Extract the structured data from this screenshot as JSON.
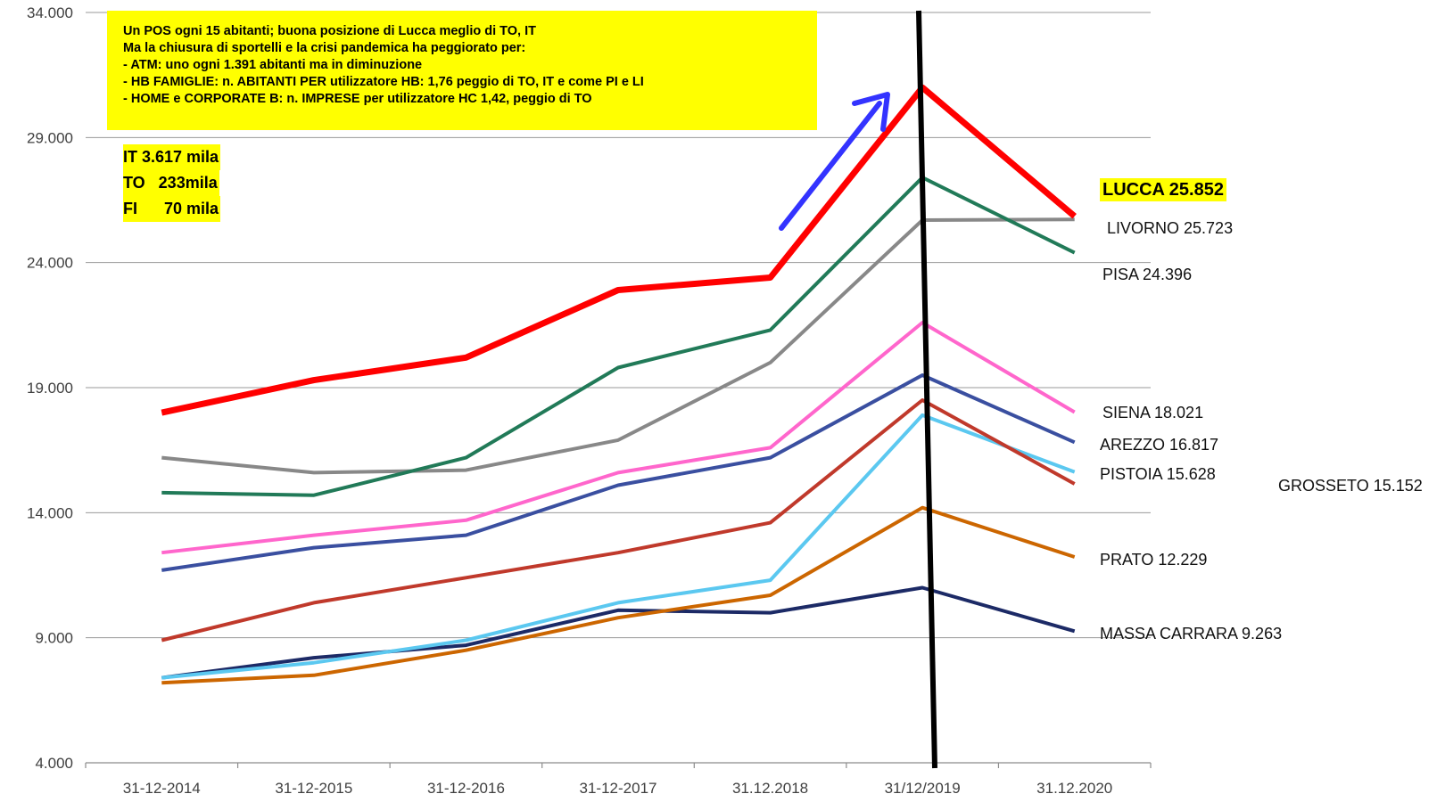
{
  "chart_data": {
    "type": "line",
    "categories": [
      "31-12-2014",
      "31-12-2015",
      "31-12-2016",
      "31-12-2017",
      "31.12.2018",
      "31/12/2019",
      "31.12.2020"
    ],
    "ylim": [
      4000,
      34000
    ],
    "yticks": [
      "4.000",
      "9.000",
      "14.000",
      "19.000",
      "24.000",
      "29.000",
      "34.000"
    ],
    "grid": "horizontal",
    "series": [
      {
        "name": "LUCCA",
        "color": "#ff0000",
        "values": [
          18000,
          19300,
          20200,
          22900,
          23400,
          31000,
          25852
        ]
      },
      {
        "name": "PISA",
        "color": "#217a58",
        "values": [
          14800,
          14700,
          16200,
          19800,
          21300,
          27400,
          24396
        ]
      },
      {
        "name": "LIVORNO",
        "color": "#888888",
        "values": [
          16200,
          15600,
          15700,
          16900,
          20000,
          25700,
          25723
        ]
      },
      {
        "name": "SIENA",
        "color": "#ff66cc",
        "values": [
          12400,
          13100,
          13700,
          15600,
          16600,
          21600,
          18021
        ]
      },
      {
        "name": "AREZZO",
        "color": "#3a4fa0",
        "values": [
          11700,
          12600,
          13100,
          15100,
          16200,
          19500,
          16817
        ]
      },
      {
        "name": "GROSSETO",
        "color": "#c0392b",
        "values": [
          8900,
          10400,
          11400,
          12400,
          13600,
          18500,
          15152
        ]
      },
      {
        "name": "PISTOIA",
        "color": "#5bc8f0",
        "values": [
          7400,
          8000,
          8900,
          10400,
          11300,
          17900,
          15628
        ]
      },
      {
        "name": "PRATO",
        "color": "#cc6600",
        "values": [
          7200,
          7500,
          8500,
          9800,
          10700,
          14200,
          12229
        ]
      },
      {
        "name": "MASSA CARRARA",
        "color": "#1c2a66",
        "values": [
          7400,
          8200,
          8700,
          10100,
          10000,
          11000,
          9263
        ]
      }
    ],
    "annotations": {
      "note_lines": [
        "Un POS ogni 15 abitanti; buona posizione di Lucca meglio di TO, IT",
        "Ma la chiusura di sportelli e la crisi pandemica ha peggiorato per:",
        "- ATM: uno ogni 1.391 abitanti ma in diminuzione",
        "- HB FAMIGLIE: n. ABITANTI PER utilizzatore HB: 1,76 peggio di TO, IT e come PI e LI",
        "- HOME e CORPORATE B:  n. IMPRESE per utilizzatore HC 1,42, peggio di TO"
      ],
      "stats": [
        "IT 3.617 mila",
        "TO   233mila",
        "FI      70 mila"
      ],
      "end_labels": {
        "lucca": "LUCCA 25.852",
        "livorno": "LIVORNO 25.723",
        "pisa": "PISA 24.396",
        "siena": "SIENA 18.021",
        "arezzo": "AREZZO 16.817",
        "pistoia": "PISTOIA 15.628",
        "grosseto": "GROSSETO 15.152",
        "prato": "PRATO 12.229",
        "massa": "MASSA CARRARA 9.263"
      },
      "divider_color": "#000000",
      "arrow_color": "#3333ff"
    }
  }
}
